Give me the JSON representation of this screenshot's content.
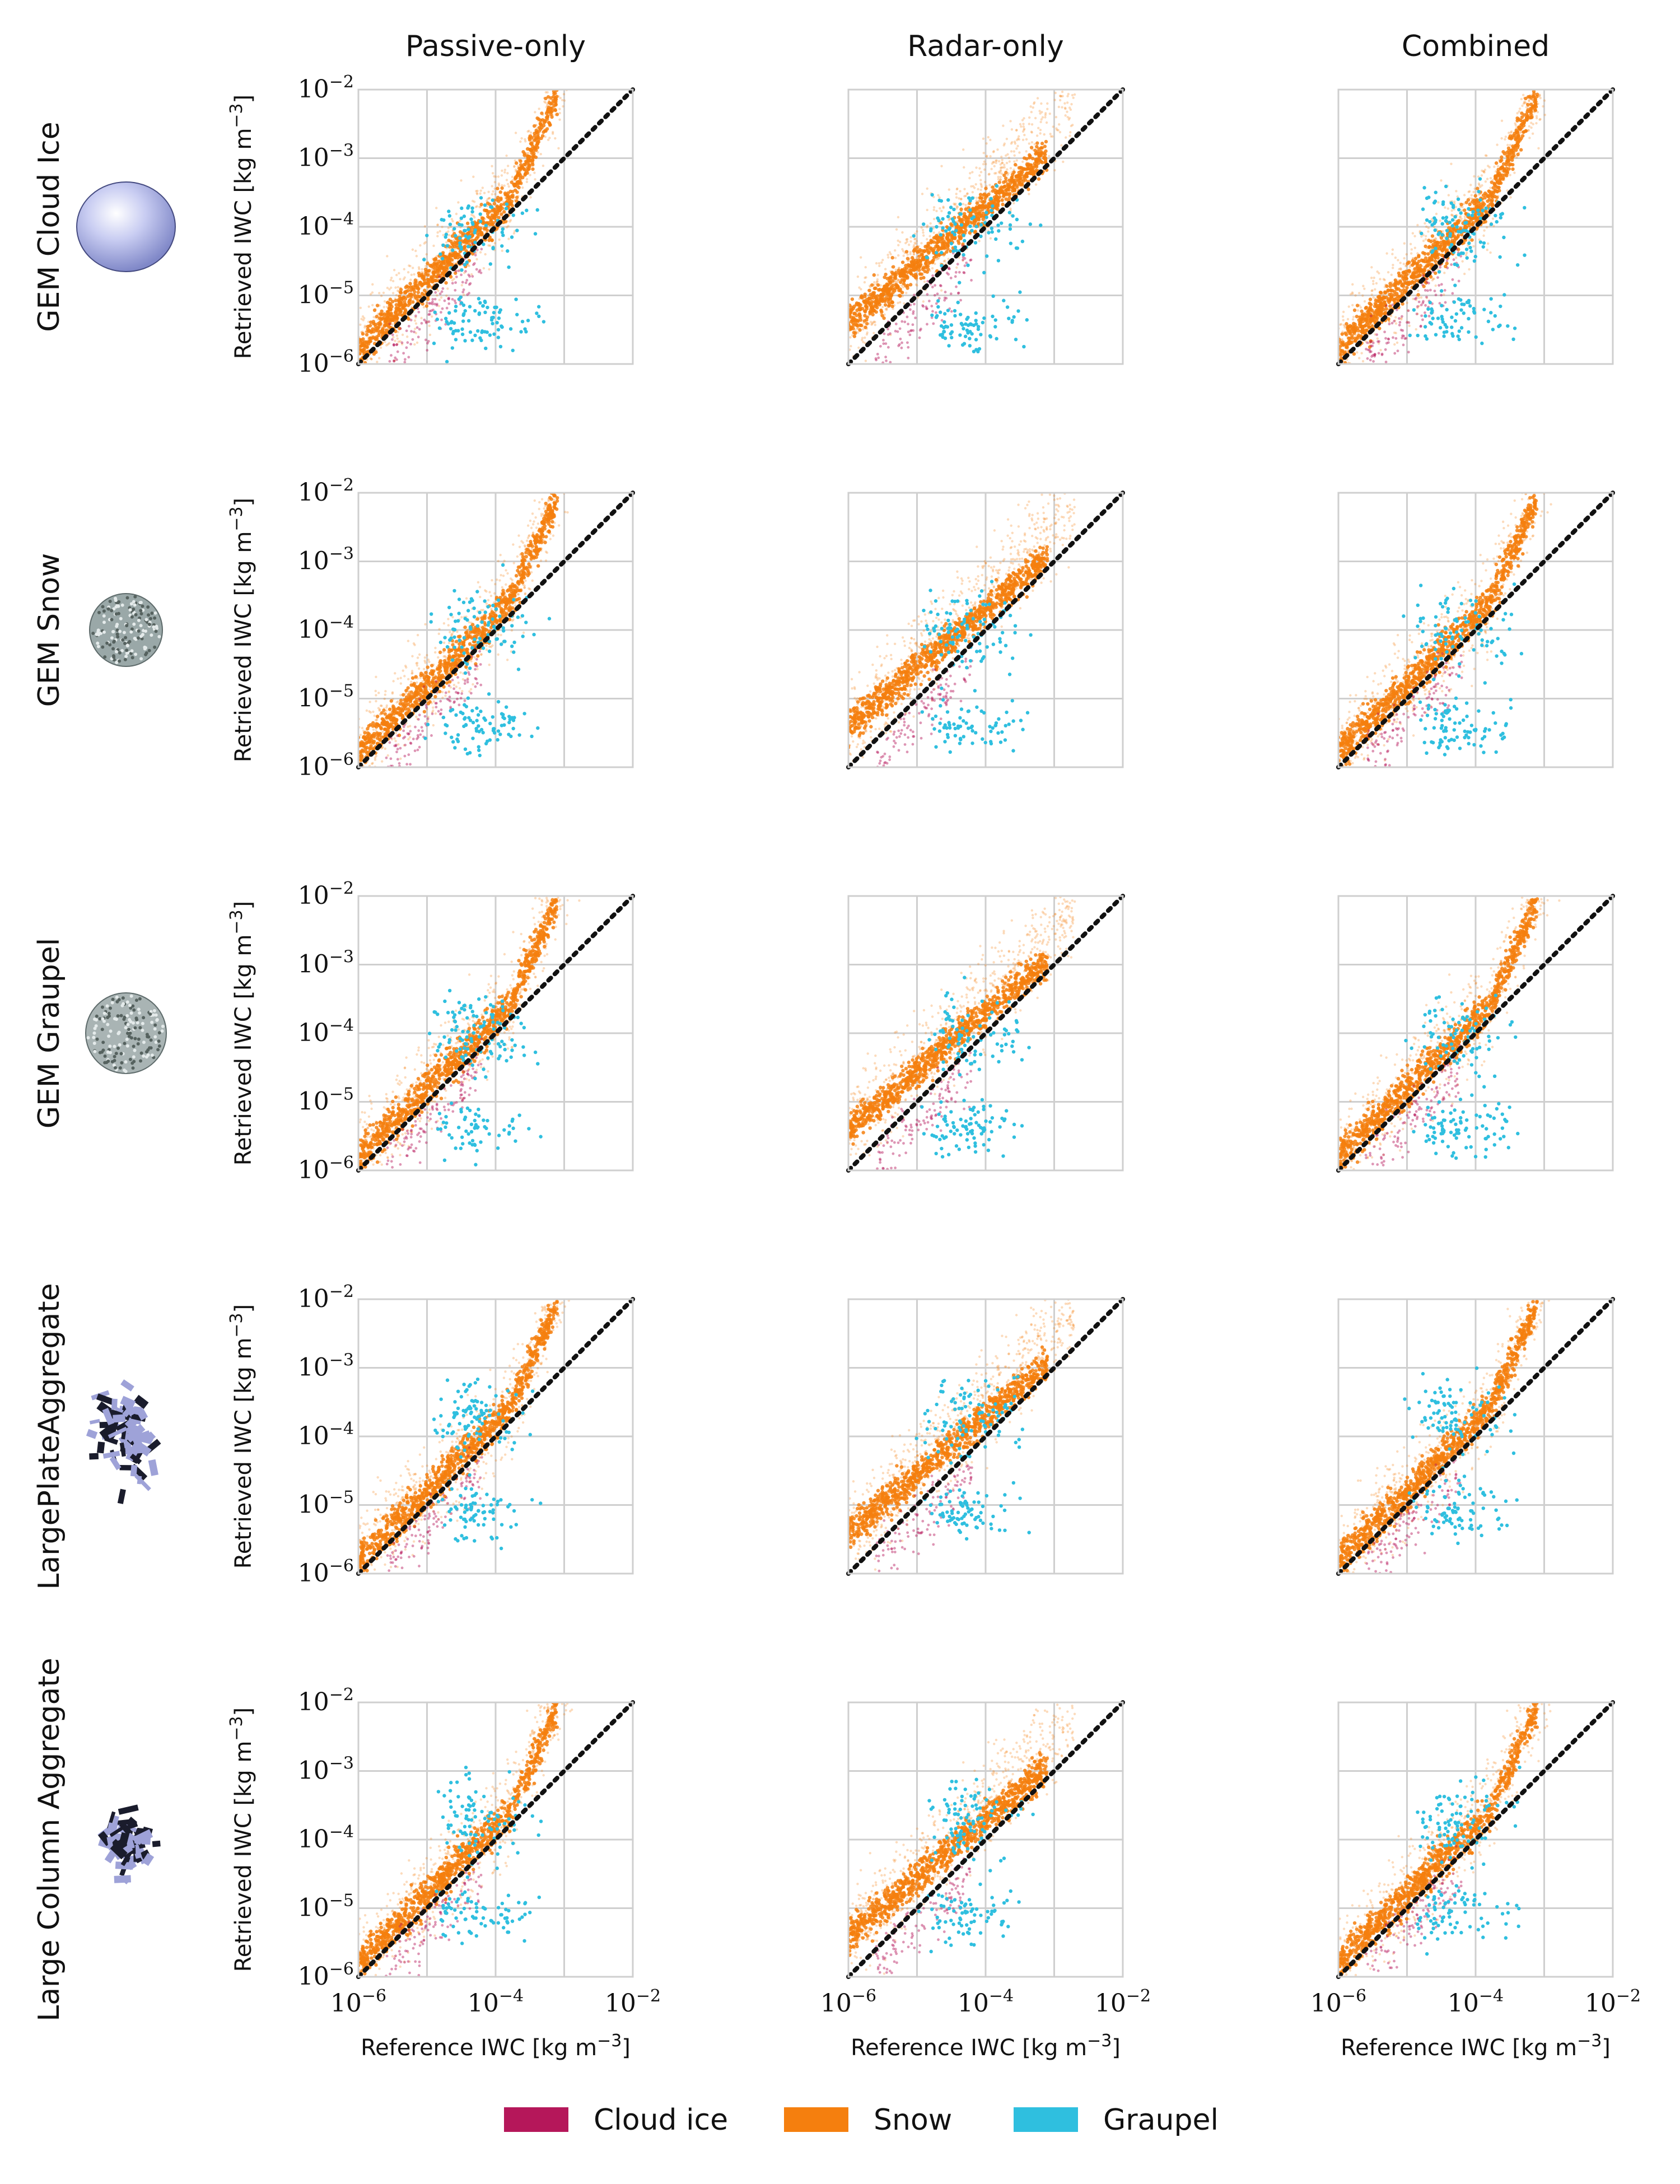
{
  "chart_data": {
    "type": "scatter",
    "columns": [
      "Passive-only",
      "Radar-only",
      "Combined"
    ],
    "rows": [
      "GEM Cloud Ice",
      "GEM Snow",
      "GEM Graupel",
      "LargePlateAggregate",
      "Large Column Aggregate"
    ],
    "xlabel_main": "Reference IWC [kg m",
    "xlabel_exp": "−3",
    "xlabel_end": "]",
    "ylabel_main": "Retrieved IWC [kg m",
    "ylabel_exp": "−3",
    "ylabel_end": "]",
    "x_scale": "log",
    "y_scale": "log",
    "xlim": [
      1e-06,
      0.01
    ],
    "ylim": [
      1e-06,
      0.01
    ],
    "tick_base": "10",
    "ticks": [
      {
        "value": 1e-06,
        "exp": "−6"
      },
      {
        "value": 1e-05,
        "exp": "−5"
      },
      {
        "value": 0.0001,
        "exp": "−4"
      },
      {
        "value": 0.001,
        "exp": "−3"
      },
      {
        "value": 0.01,
        "exp": "−2"
      }
    ],
    "x_ticks_shown": [
      {
        "value": 1e-06,
        "exp": "−6"
      },
      {
        "value": 0.0001,
        "exp": "−4"
      },
      {
        "value": 0.01,
        "exp": "−2"
      }
    ],
    "grid": true,
    "reference_line": "1:1 dotted diagonal",
    "legend_placement": "bottom-center",
    "series": [
      {
        "name": "Cloud ice",
        "color": "#b5175a"
      },
      {
        "name": "Snow",
        "color": "#f57f0e"
      },
      {
        "name": "Graupel",
        "color": "#2fbfdf"
      }
    ]
  }
}
